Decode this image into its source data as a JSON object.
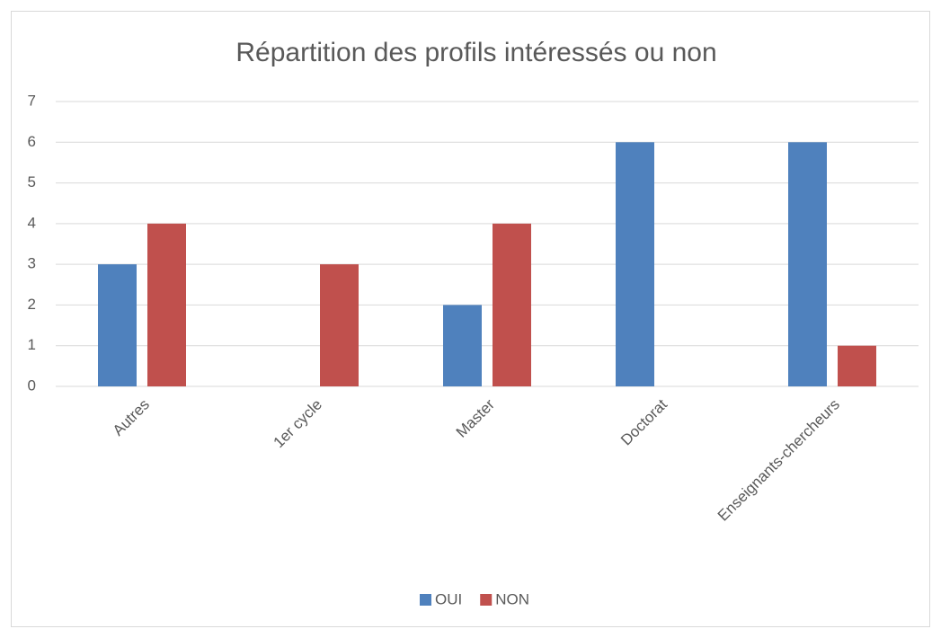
{
  "chart_data": {
    "type": "bar",
    "title": "Répartition des profils intéressés ou non",
    "categories": [
      "Autres",
      "1er cycle",
      "Master",
      "Doctorat",
      "Enseignants-chercheurs"
    ],
    "series": [
      {
        "name": "OUI",
        "color": "#4f81bd",
        "values": [
          3,
          0,
          2,
          6,
          6
        ]
      },
      {
        "name": "NON",
        "color": "#c0504d",
        "values": [
          4,
          3,
          4,
          0,
          1
        ]
      }
    ],
    "ylim": [
      0,
      7
    ],
    "yticks": [
      0,
      1,
      2,
      3,
      4,
      5,
      6,
      7
    ],
    "grid": true,
    "legend": "bottom"
  }
}
